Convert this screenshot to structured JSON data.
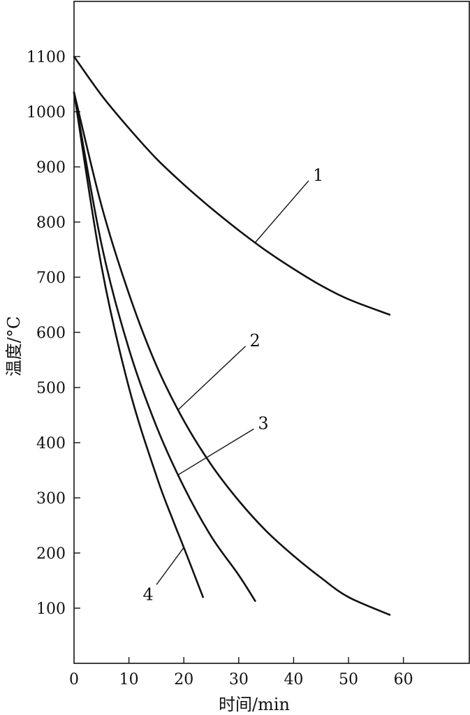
{
  "chart_data": {
    "type": "line",
    "title": "",
    "xlabel": "时间/min",
    "ylabel": "温度/°C",
    "xlim": [
      0,
      72
    ],
    "ylim": [
      0,
      1200
    ],
    "xticks": [
      0,
      10,
      20,
      30,
      40,
      50,
      60
    ],
    "yticks": [
      100,
      200,
      300,
      400,
      500,
      600,
      700,
      800,
      900,
      1000,
      1100
    ],
    "grid": false,
    "legend": "none",
    "series": [
      {
        "label": "1",
        "x": [
          0,
          5,
          10,
          15,
          20,
          25,
          30,
          35,
          40,
          45,
          50,
          57.5
        ],
        "y": [
          1100,
          1030,
          970,
          915,
          868,
          825,
          785,
          748,
          715,
          685,
          660,
          632
        ],
        "label_at_x": 43.5,
        "label_at_y": 885
      },
      {
        "label": "2",
        "x": [
          0,
          5,
          10,
          15,
          20,
          25,
          30,
          35,
          40,
          45,
          50,
          57.5
        ],
        "y": [
          1035,
          830,
          670,
          540,
          440,
          360,
          295,
          240,
          195,
          155,
          120,
          88
        ],
        "label_at_x": 32,
        "label_at_y": 585
      },
      {
        "label": "3",
        "x": [
          0,
          5,
          10,
          15,
          20,
          25,
          30,
          33
        ],
        "y": [
          1035,
          760,
          570,
          430,
          320,
          230,
          160,
          113
        ],
        "label_at_x": 33.5,
        "label_at_y": 435
      },
      {
        "label": "4",
        "x": [
          0,
          5,
          10,
          15,
          18,
          20,
          23.5
        ],
        "y": [
          1035,
          720,
          500,
          340,
          260,
          210,
          120
        ],
        "label_at_x": 13.5,
        "label_at_y": 125
      }
    ]
  }
}
